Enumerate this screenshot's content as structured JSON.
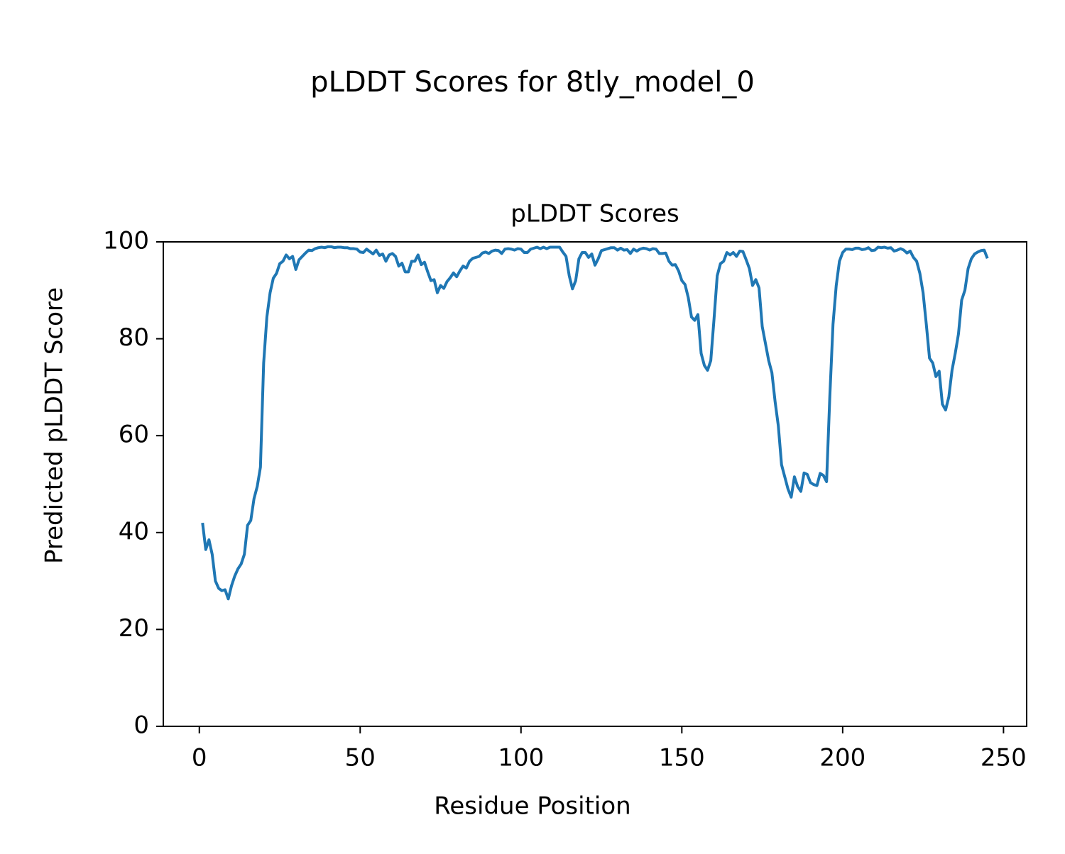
{
  "chart_data": {
    "type": "line",
    "title": "pLDDT Scores for 8tly_model_0",
    "subtitle": "pLDDT Scores",
    "x_label": "Residue Position",
    "y_label": "Predicted pLDDT Score",
    "color": "#1f77b4",
    "grid": false,
    "xlim": [
      -11.2,
      257.2
    ],
    "ylim": [
      0,
      100
    ],
    "xticks": [
      0,
      50,
      100,
      150,
      200,
      250
    ],
    "yticks": [
      0,
      20,
      40,
      60,
      80,
      100
    ],
    "x": [
      1,
      2,
      3,
      4,
      5,
      6,
      7,
      8,
      9,
      10,
      11,
      12,
      13,
      14,
      15,
      16,
      17,
      18,
      19,
      20,
      21,
      22,
      23,
      24,
      25,
      26,
      27,
      28,
      29,
      30,
      31,
      32,
      33,
      34,
      35,
      36,
      37,
      38,
      39,
      40,
      41,
      42,
      43,
      44,
      45,
      46,
      47,
      48,
      49,
      50,
      51,
      52,
      53,
      54,
      55,
      56,
      57,
      58,
      59,
      60,
      61,
      62,
      63,
      64,
      65,
      66,
      67,
      68,
      69,
      70,
      71,
      72,
      73,
      74,
      75,
      76,
      77,
      78,
      79,
      80,
      81,
      82,
      83,
      84,
      85,
      86,
      87,
      88,
      89,
      90,
      91,
      92,
      93,
      94,
      95,
      96,
      97,
      98,
      99,
      100,
      101,
      102,
      103,
      104,
      105,
      106,
      107,
      108,
      109,
      110,
      111,
      112,
      113,
      114,
      115,
      116,
      117,
      118,
      119,
      120,
      121,
      122,
      123,
      124,
      125,
      126,
      127,
      128,
      129,
      130,
      131,
      132,
      133,
      134,
      135,
      136,
      137,
      138,
      139,
      140,
      141,
      142,
      143,
      144,
      145,
      146,
      147,
      148,
      149,
      150,
      151,
      152,
      153,
      154,
      155,
      156,
      157,
      158,
      159,
      160,
      161,
      162,
      163,
      164,
      165,
      166,
      167,
      168,
      169,
      170,
      171,
      172,
      173,
      174,
      175,
      176,
      177,
      178,
      179,
      180,
      181,
      182,
      183,
      184,
      185,
      186,
      187,
      188,
      189,
      190,
      191,
      192,
      193,
      194,
      195,
      196,
      197,
      198,
      199,
      200,
      201,
      202,
      203,
      204,
      205,
      206,
      207,
      208,
      209,
      210,
      211,
      212,
      213,
      214,
      215,
      216,
      217,
      218,
      219,
      220,
      221,
      222,
      223,
      224,
      225,
      226,
      227,
      228,
      229,
      230,
      231,
      232,
      233,
      234,
      235,
      236,
      237,
      238,
      239,
      240,
      241,
      242,
      243,
      244,
      245
    ],
    "values": [
      42,
      36.5,
      38.5,
      35.5,
      30,
      28.5,
      28,
      28.2,
      26.3,
      29,
      31,
      32.5,
      33.5,
      35.5,
      41.5,
      42.5,
      47,
      49.5,
      53.5,
      75,
      84.5,
      89.5,
      92.5,
      93.5,
      95.5,
      96,
      97.3,
      96.5,
      97,
      94.3,
      96.3,
      97,
      97.7,
      98.3,
      98.2,
      98.6,
      98.8,
      98.9,
      98.8,
      99,
      99,
      98.8,
      98.9,
      98.9,
      98.8,
      98.8,
      98.6,
      98.6,
      98.5,
      97.9,
      97.8,
      98.5,
      98,
      97.5,
      98.3,
      97.2,
      97.5,
      96,
      97.3,
      97.6,
      97,
      95,
      95.6,
      93.8,
      93.8,
      96,
      96,
      97.3,
      95.3,
      95.8,
      93.8,
      92,
      92.2,
      89.5,
      91,
      90.4,
      91.8,
      92.6,
      93.6,
      92.8,
      94,
      95,
      94.6,
      96,
      96.6,
      96.8,
      97,
      97.7,
      97.9,
      97.6,
      98.1,
      98.3,
      98.2,
      97.6,
      98.5,
      98.6,
      98.5,
      98.3,
      98.6,
      98.5,
      97.8,
      97.8,
      98.5,
      98.7,
      98.9,
      98.6,
      98.9,
      98.6,
      98.9,
      98.9,
      98.9,
      98.9,
      97.9,
      97,
      93,
      90.3,
      92,
      96.5,
      97.8,
      97.8,
      96.8,
      97.5,
      95.2,
      96.5,
      98.2,
      98.4,
      98.6,
      98.8,
      98.8,
      98.3,
      98.7,
      98.3,
      98.4,
      97.6,
      98.5,
      98.1,
      98.5,
      98.7,
      98.6,
      98.3,
      98.6,
      98.5,
      97.6,
      97.6,
      97.7,
      96,
      95.2,
      95.3,
      94,
      92,
      91.2,
      88.5,
      84.5,
      83.8,
      85,
      77,
      74.5,
      73.5,
      75.5,
      84,
      93,
      95.5,
      96,
      97.8,
      97.3,
      97.8,
      97,
      98.1,
      98,
      96.3,
      94.5,
      91,
      92.2,
      90.5,
      82.5,
      79,
      75.5,
      73,
      67,
      62,
      54,
      51.5,
      49,
      47.3,
      51.5,
      49.5,
      48.5,
      52.3,
      52,
      50.3,
      49.9,
      49.7,
      52.2,
      51.8,
      50.5,
      68,
      83,
      91,
      96,
      97.8,
      98.5,
      98.5,
      98.4,
      98.7,
      98.7,
      98.4,
      98.5,
      98.8,
      98.2,
      98.3,
      98.9,
      98.8,
      98.9,
      98.7,
      98.8,
      98.1,
      98.3,
      98.6,
      98.3,
      97.7,
      98.1,
      96.8,
      96,
      93.5,
      89.5,
      83,
      76,
      75,
      72.2,
      73.3,
      66.5,
      65.3,
      68,
      73.5,
      77,
      81,
      88,
      90,
      94.5,
      96.5,
      97.5,
      97.9,
      98.2,
      98.3,
      96.6
    ]
  }
}
